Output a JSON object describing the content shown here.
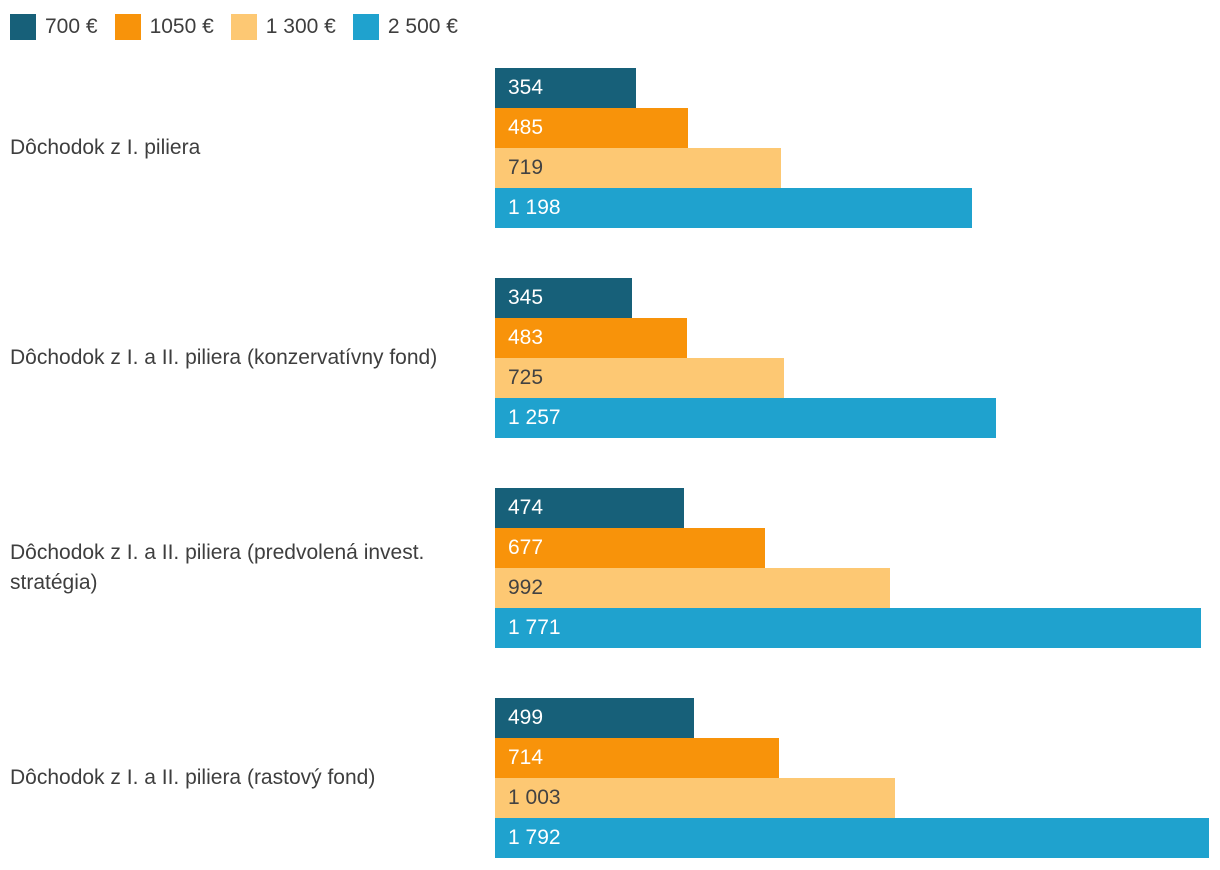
{
  "chart_data": {
    "type": "bar",
    "orientation": "horizontal",
    "title": "",
    "xlabel": "",
    "ylabel": "",
    "xlim": [
      0,
      1792
    ],
    "grid": false,
    "legend_position": "top-left",
    "categories": [
      "Dôchodok z I. piliera",
      "Dôchodok z I. a II. piliera (konzervatívny fond)",
      "Dôchodok z I. a II. piliera (predvolená invest. stratégia)",
      "Dôchodok z I. a II. piliera (rastový fond)"
    ],
    "series": [
      {
        "name": "700 €",
        "color": "#176079",
        "label_color": "#ffffff",
        "values": [
          354,
          345,
          474,
          499
        ],
        "labels": [
          "354",
          "345",
          "474",
          "499"
        ]
      },
      {
        "name": "1050 €",
        "color": "#F8930A",
        "label_color": "#ffffff",
        "values": [
          485,
          483,
          677,
          714
        ],
        "labels": [
          "485",
          "483",
          "677",
          "714"
        ]
      },
      {
        "name": "1 300 €",
        "color": "#FDC873",
        "label_color": "#424242",
        "values": [
          719,
          725,
          992,
          1003
        ],
        "labels": [
          "719",
          "725",
          "992",
          "1 003"
        ]
      },
      {
        "name": "2 500 €",
        "color": "#1FA2CE",
        "label_color": "#ffffff",
        "values": [
          1198,
          1257,
          1771,
          1792
        ],
        "labels": [
          "1 198",
          "1 257",
          "1 771",
          "1 792"
        ]
      }
    ]
  }
}
